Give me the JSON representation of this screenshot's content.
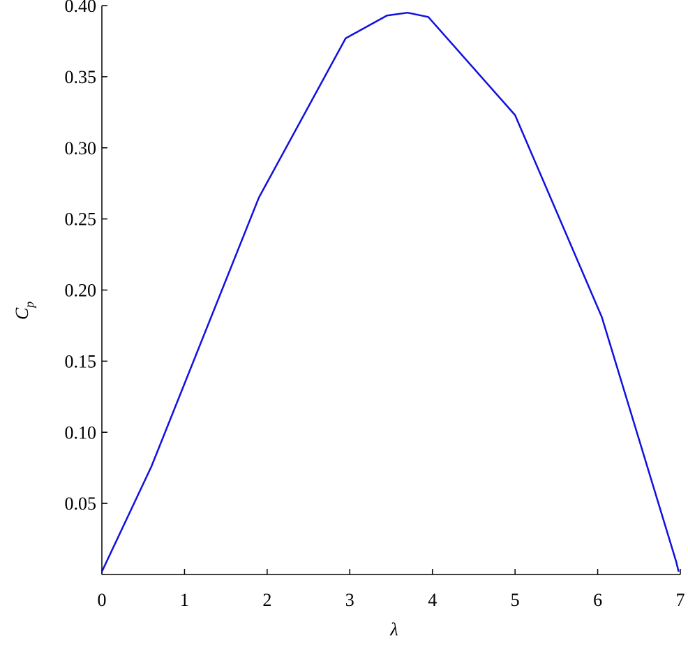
{
  "chart_data": {
    "type": "line",
    "xlabel": "λ",
    "ylabel": {
      "main": "C",
      "sub": "p"
    },
    "x": [
      0,
      0.6,
      1.9,
      2.95,
      3.45,
      3.7,
      3.95,
      5.0,
      6.05,
      6.95,
      6.98
    ],
    "series": [
      {
        "color": "#1010e0",
        "values": [
          0.002,
          0.076,
          0.265,
          0.377,
          0.393,
          0.395,
          0.392,
          0.323,
          0.181,
          0.009,
          0.002
        ]
      }
    ],
    "xlim": [
      0,
      7
    ],
    "ylim": [
      0,
      0.4
    ],
    "xticks": [
      0,
      1,
      2,
      3,
      4,
      5,
      6,
      7
    ],
    "yticks": [
      {
        "value": 0.05,
        "label": "0.05"
      },
      {
        "value": 0.1,
        "label": "0.10"
      },
      {
        "value": 0.15,
        "label": "0.15"
      },
      {
        "value": 0.2,
        "label": "0.20"
      },
      {
        "value": 0.25,
        "label": "0.25"
      },
      {
        "value": 0.3,
        "label": "0.30"
      },
      {
        "value": 0.35,
        "label": "0.35"
      },
      {
        "value": 0.4,
        "label": "0.40"
      }
    ]
  }
}
